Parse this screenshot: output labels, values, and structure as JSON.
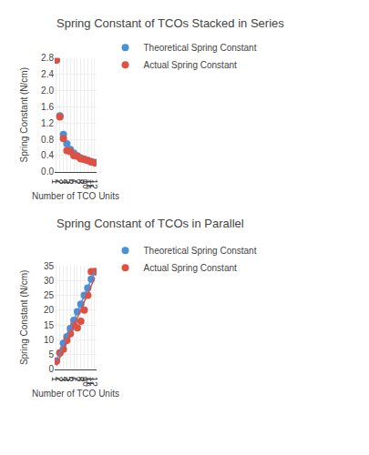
{
  "chart_data": [
    {
      "type": "scatter",
      "title": "Spring Constant of TCOs Stacked in Series",
      "xlabel": "Number of TCO Units",
      "ylabel": "Spring Constant (N/cm)",
      "x": [
        1,
        2,
        3,
        4,
        5,
        6,
        7,
        8,
        9,
        10,
        11,
        12
      ],
      "xlim": [
        0.5,
        12.5
      ],
      "xticks": [
        1,
        2,
        3,
        4,
        5,
        6,
        7,
        8,
        9,
        10,
        11,
        12
      ],
      "ylim": [
        0.0,
        2.8
      ],
      "yticks": [
        {
          "value": 0.0,
          "label": "0.0"
        },
        0.4,
        0.8,
        1.2,
        1.6,
        {
          "value": 2.0,
          "label": "2.0"
        },
        2.4,
        2.8
      ],
      "grid": true,
      "legend": "top",
      "series": [
        {
          "name": "Theoretical Spring Constant",
          "color": "#4A90D9",
          "type": "scatter",
          "values": [
            2.75,
            1.375,
            0.917,
            0.688,
            0.55,
            0.458,
            0.393,
            0.344,
            0.306,
            0.275,
            0.25,
            0.229
          ]
        },
        {
          "name": "Actual Spring Constant",
          "color": "#E05040",
          "type": "scatter",
          "values": [
            2.75,
            1.35,
            0.82,
            0.52,
            0.5,
            0.4,
            0.38,
            0.32,
            0.3,
            0.28,
            0.24,
            0.22
          ]
        }
      ]
    },
    {
      "type": "scatter",
      "title": "Spring Constant of TCOs in Parallel",
      "xlabel": "Number of TCO Units",
      "ylabel": "Spring Constant (N/cm)",
      "x": [
        1,
        2,
        3,
        4,
        5,
        6,
        7,
        8,
        9,
        10,
        11,
        12
      ],
      "xlim": [
        0.5,
        12.5
      ],
      "xticks": [
        1,
        2,
        3,
        4,
        5,
        6,
        7,
        8,
        9,
        10,
        11,
        12
      ],
      "ylim": [
        0,
        35
      ],
      "yticks": [
        0,
        5,
        10,
        15,
        20,
        25,
        30,
        35
      ],
      "grid": true,
      "legend": "top",
      "series": [
        {
          "name": "Theoretical Spring Constant",
          "color": "#4A90D9",
          "type": "scatter",
          "values": [
            2.75,
            5.5,
            8.75,
            11.0,
            13.75,
            16.5,
            19.5,
            22.0,
            25.0,
            27.5,
            30.5,
            33.0
          ]
        },
        {
          "name": "Actual Spring Constant",
          "color": "#E05040",
          "type": "scatter",
          "values": [
            2.75,
            5.5,
            6.75,
            9.75,
            12.0,
            15.0,
            14.0,
            16.25,
            20.0,
            25.0,
            33.0,
            33.0
          ]
        },
        {
          "color": "#4A90D9",
          "type": "line",
          "values": [
            2.8494,
            5.6002,
            8.3511,
            11.102,
            13.8529,
            16.6037,
            19.3546,
            22.1055,
            24.8564,
            27.6072,
            30.3581,
            33.109
          ]
        },
        {
          "color": "#E05040",
          "type": "line",
          "values": [
            1.2564,
            3.9522,
            6.648,
            9.3438,
            12.0396,
            14.7354,
            17.4312,
            20.127,
            22.8228,
            25.5186,
            28.2145,
            30.9103
          ]
        }
      ]
    }
  ]
}
